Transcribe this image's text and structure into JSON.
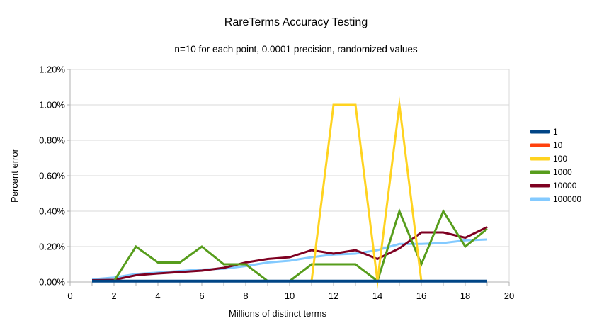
{
  "chart": {
    "title": "RareTerms Accuracy Testing",
    "subtitle": "n=10 for each point, 0.0001 precision, randomized values",
    "xlabel": "Millions of distinct terms",
    "ylabel": "Percent error"
  },
  "axes": {
    "x_tick_labels": [
      "0",
      "2",
      "4",
      "6",
      "8",
      "10",
      "12",
      "14",
      "16",
      "18",
      "20"
    ],
    "x_tick_values": [
      0,
      2,
      4,
      6,
      8,
      10,
      12,
      14,
      16,
      18,
      20
    ],
    "y_tick_labels": [
      "0.00%",
      "0.20%",
      "0.40%",
      "0.60%",
      "0.80%",
      "1.00%",
      "1.20%"
    ],
    "y_tick_values": [
      0,
      0.2,
      0.4,
      0.6,
      0.8,
      1.0,
      1.2
    ]
  },
  "chart_data": {
    "type": "line",
    "title": "RareTerms Accuracy Testing",
    "subtitle": "n=10 for each point, 0.0001 precision, randomized values",
    "xlabel": "Millions of distinct terms",
    "ylabel": "Percent error",
    "xlim": [
      0,
      20
    ],
    "ylim_percent": [
      0,
      1.2
    ],
    "grid": true,
    "legend_position": "right",
    "x": [
      1,
      2,
      3,
      4,
      5,
      6,
      7,
      8,
      9,
      10,
      11,
      12,
      13,
      14,
      15,
      16,
      17,
      18,
      19
    ],
    "series": [
      {
        "name": "1",
        "color": "#004586",
        "values": [
          0.005,
          0.005,
          0.005,
          0.005,
          0.005,
          0.005,
          0.005,
          0.005,
          0.005,
          0.005,
          0.005,
          0.005,
          0.005,
          0.005,
          0.005,
          0.005,
          0.005,
          0.005,
          0.005
        ]
      },
      {
        "name": "10",
        "color": "#FF420E",
        "values": [
          0.005,
          0.005,
          0.005,
          0.005,
          0.005,
          0.005,
          0.005,
          0.005,
          0.005,
          0.005,
          0.005,
          0.005,
          0.005,
          0.005,
          0.005,
          0.005,
          0.005,
          0.005,
          0.005
        ]
      },
      {
        "name": "100",
        "color": "#FFD320",
        "values": [
          0.005,
          0.005,
          0.005,
          0.005,
          0.005,
          0.005,
          0.005,
          0.005,
          0.005,
          0.005,
          0.005,
          1.0,
          1.0,
          0.005,
          1.0,
          0.005,
          0.005,
          0.005,
          0.005
        ]
      },
      {
        "name": "1000",
        "color": "#579D1C",
        "values": [
          0.005,
          0.005,
          0.2,
          0.11,
          0.11,
          0.2,
          0.1,
          0.1,
          0.005,
          0.005,
          0.1,
          0.1,
          0.1,
          0.005,
          0.4,
          0.1,
          0.4,
          0.2,
          0.3
        ]
      },
      {
        "name": "10000",
        "color": "#7E0021",
        "values": [
          0.01,
          0.012,
          0.038,
          0.048,
          0.056,
          0.064,
          0.08,
          0.11,
          0.13,
          0.14,
          0.18,
          0.16,
          0.18,
          0.13,
          0.19,
          0.28,
          0.28,
          0.25,
          0.31
        ]
      },
      {
        "name": "100000",
        "color": "#83CAFF",
        "values": [
          0.015,
          0.025,
          0.045,
          0.053,
          0.062,
          0.07,
          0.075,
          0.09,
          0.11,
          0.12,
          0.14,
          0.155,
          0.16,
          0.18,
          0.215,
          0.215,
          0.22,
          0.235,
          0.24
        ]
      }
    ]
  },
  "style": {
    "grid_color": "#d9d9d9",
    "axis_color": "#b0b0b0",
    "text_color": "#000000",
    "background": "#ffffff"
  }
}
